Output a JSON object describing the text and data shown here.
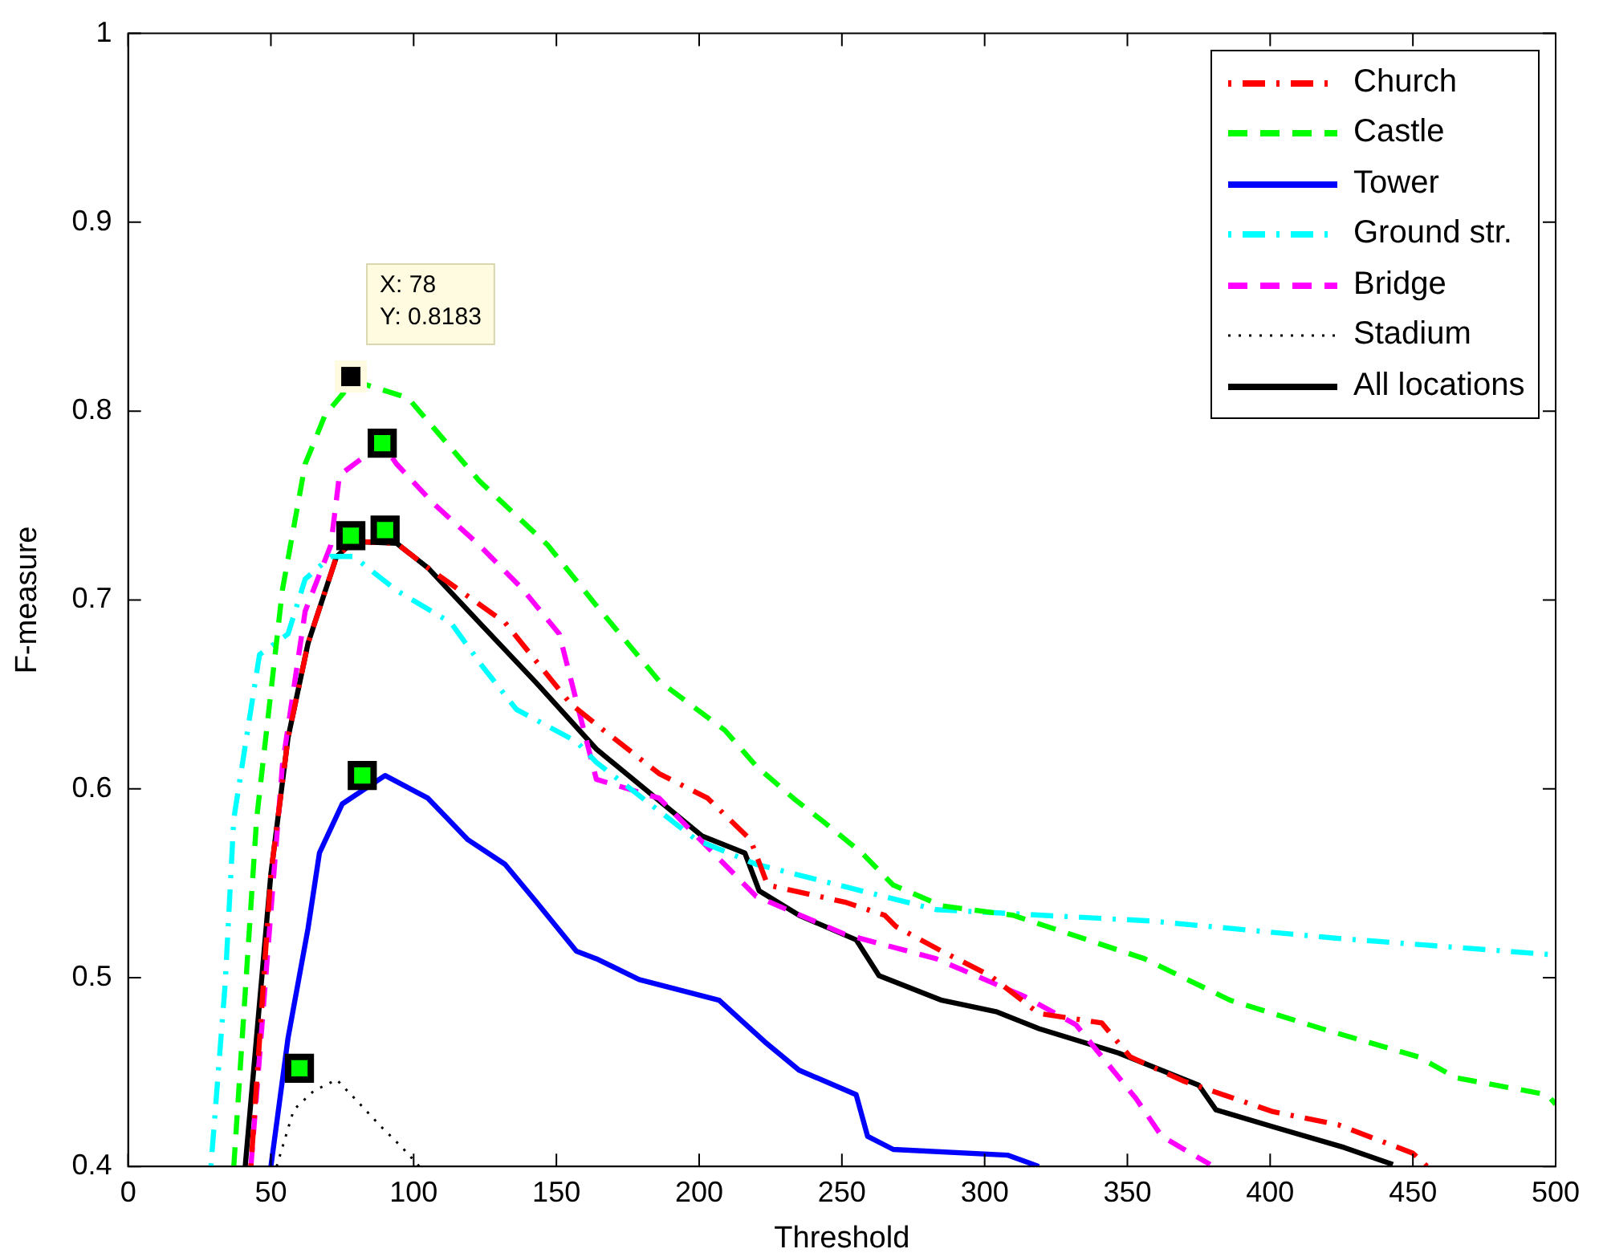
{
  "chart_data": {
    "type": "line",
    "xlabel": "Threshold",
    "ylabel": "F-measure",
    "xlim": [
      0,
      500
    ],
    "ylim": [
      0.4,
      1
    ],
    "xticks": [
      0,
      50,
      100,
      150,
      200,
      250,
      300,
      350,
      400,
      450,
      500
    ],
    "yticks": [
      0.4,
      0.5,
      0.6,
      0.7,
      0.8,
      0.9,
      1
    ],
    "grid": false,
    "legend": "top right",
    "series": [
      {
        "name": "Church",
        "color": "#ff0000",
        "line_style": "dashdot",
        "marker": "none",
        "x": [
          43,
          50,
          56,
          63,
          73,
          79,
          94,
          105,
          132,
          155,
          164,
          186,
          203,
          218,
          224,
          251,
          265,
          269,
          285,
          302,
          319,
          341,
          351,
          370,
          401,
          424,
          450,
          455
        ],
        "values": [
          0.4,
          0.555,
          0.627,
          0.677,
          0.723,
          0.731,
          0.73,
          0.717,
          0.688,
          0.645,
          0.634,
          0.608,
          0.595,
          0.573,
          0.549,
          0.54,
          0.533,
          0.527,
          0.514,
          0.501,
          0.481,
          0.476,
          0.458,
          0.445,
          0.429,
          0.422,
          0.407,
          0.4
        ]
      },
      {
        "name": "Castle",
        "color": "#00ff00",
        "line_style": "dashed",
        "marker": "none",
        "x": [
          37,
          45,
          54,
          62,
          69,
          79,
          98,
          123,
          147,
          164,
          186,
          209,
          220,
          233,
          244,
          257,
          268,
          285,
          310,
          336,
          356,
          386,
          418,
          452,
          465,
          497,
          500
        ],
        "values": [
          0.4,
          0.584,
          0.705,
          0.772,
          0.798,
          0.816,
          0.807,
          0.763,
          0.729,
          0.697,
          0.657,
          0.631,
          0.612,
          0.595,
          0.582,
          0.566,
          0.549,
          0.538,
          0.533,
          0.52,
          0.51,
          0.488,
          0.473,
          0.458,
          0.447,
          0.438,
          0.433
        ]
      },
      {
        "name": "Tower",
        "color": "#0000ff",
        "line_style": "solid",
        "marker": "none",
        "x": [
          50,
          56,
          63,
          67,
          75,
          90,
          105,
          119,
          132,
          143,
          157,
          164,
          179,
          207,
          223,
          235,
          255,
          259,
          268,
          308,
          319
        ],
        "values": [
          0.4,
          0.468,
          0.526,
          0.566,
          0.592,
          0.607,
          0.595,
          0.573,
          0.56,
          0.54,
          0.514,
          0.51,
          0.499,
          0.488,
          0.466,
          0.451,
          0.438,
          0.416,
          0.409,
          0.406,
          0.4
        ]
      },
      {
        "name": "Ground str.",
        "color": "#00ffff",
        "line_style": "dashdot",
        "marker": "none",
        "x": [
          29,
          34,
          37,
          43,
          46,
          56,
          62,
          71,
          79,
          94,
          113,
          124,
          136,
          157,
          164,
          199,
          220,
          283,
          358,
          422,
          500
        ],
        "values": [
          0.4,
          0.497,
          0.584,
          0.642,
          0.671,
          0.682,
          0.711,
          0.723,
          0.723,
          0.705,
          0.688,
          0.665,
          0.642,
          0.625,
          0.614,
          0.573,
          0.56,
          0.536,
          0.53,
          0.521,
          0.512
        ]
      },
      {
        "name": "Bridge",
        "color": "#ff00ff",
        "line_style": "dashed",
        "marker": "none",
        "x": [
          43,
          54,
          62,
          71,
          74,
          89,
          94,
          107,
          123,
          138,
          151,
          164,
          186,
          220,
          251,
          283,
          314,
          332,
          353,
          362,
          379
        ],
        "values": [
          0.4,
          0.612,
          0.694,
          0.729,
          0.766,
          0.783,
          0.772,
          0.751,
          0.729,
          0.706,
          0.682,
          0.605,
          0.595,
          0.543,
          0.523,
          0.51,
          0.49,
          0.475,
          0.436,
          0.416,
          0.401
        ]
      },
      {
        "name": "Stadium",
        "color": "#000000",
        "line_style": "dotted",
        "marker": "none",
        "x": [
          52,
          58,
          65,
          73,
          80,
          88,
          96,
          102
        ],
        "values": [
          0.4,
          0.43,
          0.44,
          0.446,
          0.435,
          0.422,
          0.41,
          0.4
        ]
      },
      {
        "name": "All locations",
        "color": "#000000",
        "line_style": "solid",
        "marker": "none",
        "x": [
          41,
          50,
          56,
          63,
          73,
          79,
          94,
          105,
          123,
          143,
          164,
          201,
          216,
          221,
          235,
          255,
          263,
          285,
          304,
          319,
          347,
          375,
          381,
          401,
          426,
          443
        ],
        "values": [
          0.4,
          0.555,
          0.627,
          0.677,
          0.723,
          0.731,
          0.73,
          0.717,
          0.688,
          0.656,
          0.621,
          0.575,
          0.566,
          0.546,
          0.533,
          0.52,
          0.501,
          0.488,
          0.482,
          0.473,
          0.46,
          0.443,
          0.43,
          0.421,
          0.41,
          0.401
        ]
      },
      {
        "type": "scatter",
        "color": "#00ff00",
        "marker": "square",
        "x": [
          60,
          78,
          90,
          89,
          82
        ],
        "values": [
          0.452,
          0.734,
          0.737,
          0.783,
          0.607
        ]
      }
    ],
    "annotations": [
      {
        "text": "X: 78\nY: 0.8183",
        "x": 78,
        "y": 0.8183
      }
    ]
  }
}
